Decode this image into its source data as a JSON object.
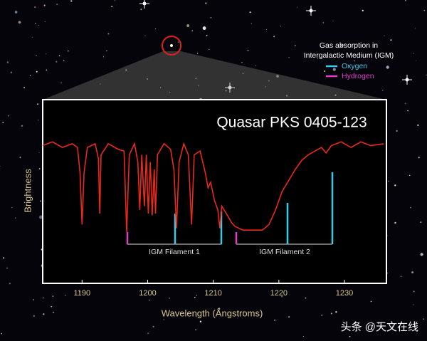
{
  "chart_data": {
    "type": "line",
    "title": "Quasar PKS 0405-123",
    "x_label": "Wavelength (Ångstroms)",
    "y_label": "Brightness",
    "xlim": [
      1184,
      1236.4
    ],
    "ylim": [
      0,
      1
    ],
    "xticks": [
      1190,
      1200,
      1210,
      1220,
      1230
    ],
    "legend": {
      "title_lines": [
        "Gas absorption in",
        "Intergalactic Medium (IGM)"
      ],
      "items": [
        {
          "name": "Oxygen",
          "color": "#3ec8e8"
        },
        {
          "name": "Hydrogen",
          "color": "#e040c8"
        }
      ]
    },
    "annotations": [
      "IGM Filament 1",
      "IGM Filament 2"
    ],
    "watermark": "头条 @天文在线",
    "series": [
      {
        "color": "#e8291c",
        "x": [
          1184.0,
          1185.5,
          1187.0,
          1188.5,
          1189.3,
          1189.7,
          1190.0,
          1190.3,
          1190.8,
          1192.0,
          1192.5,
          1192.7,
          1192.9,
          1194.0,
          1195.5,
          1196.4,
          1196.8,
          1197.2,
          1198.0,
          1198.5,
          1198.8,
          1199.1,
          1199.5,
          1199.8,
          1200.1,
          1200.4,
          1200.7,
          1201.0,
          1201.2,
          1201.5,
          1202.5,
          1203.5,
          1204.0,
          1204.4,
          1204.8,
          1205.5,
          1206.2,
          1206.7,
          1207.1,
          1208.0,
          1208.8,
          1209.2,
          1209.6,
          1210.2,
          1210.7,
          1211.0,
          1211.3,
          1212.0,
          1212.8,
          1213.3,
          1214.5,
          1216.0,
          1217.5,
          1218.5,
          1219.5,
          1220.5,
          1221.5,
          1222.5,
          1223.5,
          1224.5,
          1225.5,
          1226.5,
          1227.2,
          1228.0,
          1229.5,
          1231.0,
          1232.5,
          1234.0,
          1236.0
        ],
        "values": [
          0.75,
          0.77,
          0.74,
          0.76,
          0.74,
          0.6,
          0.32,
          0.6,
          0.74,
          0.76,
          0.68,
          0.38,
          0.7,
          0.76,
          0.73,
          0.72,
          0.28,
          0.7,
          0.76,
          0.66,
          0.4,
          0.7,
          0.42,
          0.7,
          0.38,
          0.66,
          0.37,
          0.62,
          0.38,
          0.7,
          0.76,
          0.73,
          0.62,
          0.3,
          0.66,
          0.76,
          0.7,
          0.32,
          0.7,
          0.72,
          0.6,
          0.52,
          0.55,
          0.45,
          0.4,
          0.3,
          0.42,
          0.38,
          0.33,
          0.31,
          0.29,
          0.29,
          0.29,
          0.32,
          0.4,
          0.5,
          0.56,
          0.62,
          0.67,
          0.7,
          0.72,
          0.74,
          0.71,
          0.75,
          0.77,
          0.74,
          0.77,
          0.75,
          0.76
        ]
      }
    ]
  }
}
